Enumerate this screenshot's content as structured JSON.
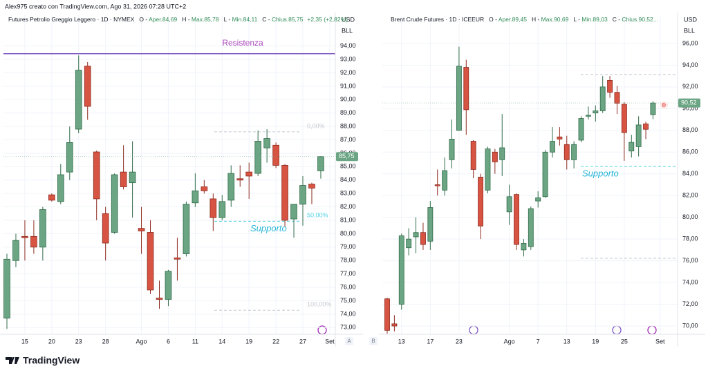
{
  "header": {
    "text": "Alex975 creato con TradingView.com, Ago 31, 2026 07:28 UTC+2"
  },
  "footer": {
    "brand": "TradingView"
  },
  "buttons": [
    "A",
    "B"
  ],
  "chart_data": [
    {
      "type": "candlestick",
      "title": "Futures Petrolio Greggio Leggero · 1D · NYMEX",
      "legend": [
        {
          "key": "O",
          "text": "Aper.84,69"
        },
        {
          "key": "H",
          "text": "Max.85,78"
        },
        {
          "key": "L",
          "text": "Min.84,11"
        },
        {
          "key": "C",
          "text": "Chius.85,75"
        }
      ],
      "change": "+2,35 (+2,82%)",
      "currency": "USD",
      "unit": "BLL",
      "categories": [
        null,
        null,
        "15",
        null,
        null,
        "20",
        null,
        null,
        "23",
        null,
        null,
        "28",
        null,
        null,
        null,
        "Ago",
        null,
        null,
        "6",
        null,
        null,
        "11",
        null,
        null,
        "14",
        null,
        null,
        "19",
        null,
        null,
        "22",
        null,
        null,
        "27",
        null,
        null,
        "Set"
      ],
      "open": [
        73.7,
        78.0,
        79.8,
        79.8,
        79.0,
        82.9,
        82.4,
        84.6,
        87.8,
        92.5,
        86.1,
        81.5,
        80.1,
        84.6,
        83.8,
        80.4,
        80.1,
        75.2,
        75.1,
        78.2,
        78.5,
        82.3,
        83.5,
        82.6,
        81.2,
        82.5,
        84.1,
        84.6,
        84.5,
        86.4,
        86.6,
        85.1,
        81.1,
        82.2,
        83.7,
        84.69,
        null
      ],
      "high": [
        78.5,
        80.0,
        81.0,
        81.0,
        82.0,
        83.0,
        85.2,
        88.0,
        93.3,
        92.8,
        86.2,
        82.0,
        84.5,
        86.6,
        86.9,
        82.0,
        81.0,
        76.5,
        77.3,
        79.7,
        82.4,
        84.5,
        84.0,
        83.0,
        82.9,
        85.1,
        85.1,
        85.3,
        87.7,
        87.8,
        86.8,
        85.2,
        82.2,
        84.3,
        83.8,
        85.78,
        null
      ],
      "low": [
        72.9,
        77.5,
        78.0,
        78.5,
        78.0,
        82.4,
        82.2,
        84.0,
        87.5,
        88.5,
        81.0,
        78.0,
        80.0,
        83.3,
        81.2,
        78.5,
        75.5,
        74.4,
        74.6,
        76.5,
        78.3,
        82.0,
        83.0,
        80.2,
        81.0,
        82.0,
        83.5,
        82.6,
        84.3,
        85.3,
        84.9,
        80.5,
        79.7,
        80.6,
        82.2,
        84.11,
        null
      ],
      "close": [
        78.1,
        79.5,
        79.7,
        79.0,
        81.8,
        82.5,
        84.4,
        86.8,
        92.2,
        89.5,
        82.6,
        79.3,
        84.4,
        83.5,
        84.6,
        80.2,
        75.8,
        75.1,
        77.2,
        78.1,
        82.2,
        83.2,
        83.2,
        81.2,
        82.4,
        84.5,
        84.0,
        84.3,
        86.9,
        87.1,
        85.1,
        81.0,
        82.2,
        83.6,
        83.4,
        85.75,
        null
      ],
      "up_color": "#6ba583",
      "down_color": "#d75442",
      "up_border": "#2f6b48",
      "down_border": "#8c2a1f",
      "last_label": "85,75",
      "ylim": [
        72.5,
        96.3
      ],
      "yticks": [
        {
          "value": 73,
          "label": "73,00"
        },
        {
          "value": 74,
          "label": "74,00"
        },
        {
          "value": 75,
          "label": "75,00"
        },
        {
          "value": 76,
          "label": "76,00"
        },
        {
          "value": 77,
          "label": "77,00"
        },
        {
          "value": 78,
          "label": "78,00"
        },
        {
          "value": 79,
          "label": "79,00"
        },
        {
          "value": 80,
          "label": "80,00"
        },
        {
          "value": 81,
          "label": "81,00"
        },
        {
          "value": 82,
          "label": "82,00"
        },
        {
          "value": 83,
          "label": "83,00"
        },
        {
          "value": 84,
          "label": "84,00"
        },
        {
          "value": 85,
          "label": "85,00"
        },
        {
          "value": 86,
          "label": "86,00"
        },
        {
          "value": 87,
          "label": "87,00"
        },
        {
          "value": 88,
          "label": "88,00"
        },
        {
          "value": 89,
          "label": "89,00"
        },
        {
          "value": 90,
          "label": "90,00"
        },
        {
          "value": 91,
          "label": "91,00"
        },
        {
          "value": 92,
          "label": "92,00"
        },
        {
          "value": 93,
          "label": "93,00"
        },
        {
          "value": 94,
          "label": "94,00"
        }
      ],
      "grid": true,
      "resistance": {
        "label": "Resistenza",
        "value": 93.43,
        "color": "#7e57c2",
        "text_color": "#ab47bc"
      },
      "support": {
        "label": "Supporto",
        "value": 80.93,
        "color": "#26b5d6"
      },
      "levels": [
        {
          "value": 87.6,
          "label": "0,00%",
          "color": "#c5c8cf"
        },
        {
          "value": 80.93,
          "label": "50,00%",
          "color": "#4dd0e1"
        },
        {
          "value": 74.29,
          "label": "100,00%",
          "color": "#c5c8cf"
        }
      ]
    },
    {
      "type": "candlestick",
      "title": "Brent Crude Futures · 1D · ICEEUR",
      "legend": [
        {
          "key": "O",
          "text": "Aper.89,45"
        },
        {
          "key": "H",
          "text": "Max.90,69"
        },
        {
          "key": "L",
          "text": "Min.89,03"
        },
        {
          "key": "C",
          "text": "Chius.90,52..."
        }
      ],
      "currency": "USD",
      "unit": "BLL",
      "categories": [
        null,
        null,
        "13",
        null,
        null,
        null,
        "17",
        null,
        null,
        null,
        "23",
        null,
        null,
        null,
        null,
        null,
        null,
        "Ago",
        null,
        null,
        null,
        "7",
        null,
        null,
        null,
        "13",
        null,
        null,
        null,
        "19",
        null,
        null,
        null,
        "25",
        null,
        null,
        null,
        null,
        "Set"
      ],
      "open": [
        72.5,
        70.2,
        72.0,
        77.2,
        78.2,
        78.6,
        77.8,
        83.0,
        82.5,
        85.3,
        88.0,
        93.8,
        87.0,
        83.7,
        82.5,
        86.0,
        85.3,
        80.5,
        82.1,
        77.0,
        77.3,
        81.5,
        81.9,
        86.0,
        87.4,
        86.7,
        85.3,
        87.1,
        89.3,
        89.6,
        89.8,
        92.6,
        91.5,
        90.4,
        86.1,
        86.5,
        88.6,
        89.45,
        null
      ],
      "high": [
        72.6,
        71.0,
        78.5,
        79.0,
        80.0,
        79.5,
        81.5,
        84.4,
        85.5,
        89.0,
        95.7,
        94.5,
        87.1,
        84.0,
        86.5,
        86.3,
        89.5,
        83.0,
        82.2,
        78.0,
        81.0,
        82.4,
        86.2,
        88.3,
        88.3,
        87.5,
        87.0,
        89.3,
        90.2,
        90.3,
        93.0,
        93.0,
        92.1,
        90.6,
        87.6,
        89.3,
        88.8,
        90.69,
        null
      ],
      "low": [
        69.3,
        69.5,
        71.5,
        76.5,
        76.7,
        77.0,
        77.0,
        82.0,
        82.0,
        84.5,
        88.0,
        87.6,
        83.6,
        78.0,
        82.2,
        84.0,
        83.8,
        79.3,
        77.0,
        76.4,
        77.0,
        80.9,
        81.8,
        85.5,
        86.6,
        84.4,
        84.5,
        86.9,
        89.0,
        88.8,
        89.6,
        91.0,
        89.5,
        85.2,
        85.5,
        85.6,
        87.2,
        89.03,
        null
      ],
      "close": [
        69.6,
        70.0,
        78.3,
        78.0,
        78.6,
        77.5,
        80.9,
        82.9,
        84.3,
        87.2,
        93.9,
        89.9,
        84.4,
        79.2,
        86.3,
        85.1,
        86.4,
        81.9,
        77.5,
        77.6,
        80.8,
        81.8,
        86.0,
        87.0,
        87.2,
        85.3,
        86.7,
        89.1,
        89.4,
        89.8,
        92.0,
        91.5,
        90.5,
        87.8,
        86.9,
        88.5,
        88.1,
        90.52,
        null
      ],
      "up_color": "#6ba583",
      "down_color": "#d75442",
      "up_border": "#2f6b48",
      "down_border": "#8c2a1f",
      "last_label": "90,52",
      "marker": "D",
      "ylim": [
        69.24,
        98.6
      ],
      "yticks": [
        {
          "value": 70,
          "label": "70,00"
        },
        {
          "value": 72,
          "label": "72,00"
        },
        {
          "value": 74,
          "label": "74,00"
        },
        {
          "value": 76,
          "label": "76,00"
        },
        {
          "value": 78,
          "label": "78,00"
        },
        {
          "value": 80,
          "label": "80,00"
        },
        {
          "value": 82,
          "label": "82,00"
        },
        {
          "value": 84,
          "label": "84,00"
        },
        {
          "value": 86,
          "label": "86,00"
        },
        {
          "value": 88,
          "label": "88,00"
        },
        {
          "value": 90,
          "label": "90,00"
        },
        {
          "value": 92,
          "label": "92,00"
        },
        {
          "value": 94,
          "label": "94,00"
        },
        {
          "value": 96,
          "label": "96,00"
        }
      ],
      "grid": true,
      "support": {
        "label": "Supporto",
        "value": 84.68,
        "color": "#26b5d6"
      },
      "levels": [
        {
          "value": 93.14,
          "color": "#c5c8cf"
        },
        {
          "value": 84.68,
          "color": "#4dd0e1"
        },
        {
          "value": 76.23,
          "color": "#c5c8cf"
        }
      ]
    }
  ]
}
